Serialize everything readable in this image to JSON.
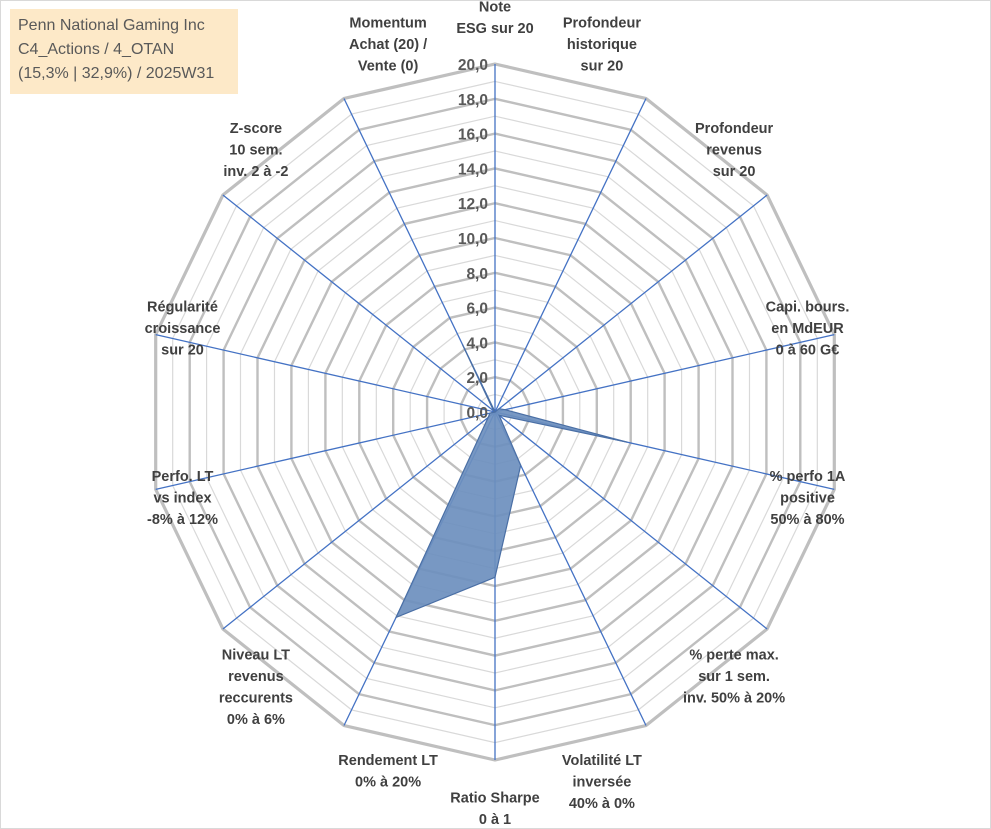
{
  "title_lines": [
    "Penn National Gaming Inc",
    "C4_Actions / 4_OTAN",
    "(15,3% | 32,9%) / 2025W31"
  ],
  "chart_data": {
    "type": "radar",
    "title": "Penn National Gaming Inc C4_Actions / 4_OTAN (15,3% | 32,9%) / 2025W31",
    "rmin": 0,
    "rmax": 20,
    "tick_step": 2,
    "tick_labels": [
      "0,0",
      "2,0",
      "4,0",
      "6,0",
      "8,0",
      "10,0",
      "12,0",
      "14,0",
      "16,0",
      "18,0",
      "20,0"
    ],
    "grid": true,
    "legend": "none",
    "axes": [
      [
        "Note",
        "ESG sur 20"
      ],
      [
        "Profondeur",
        "historique",
        "sur 20"
      ],
      [
        "Profondeur",
        "revenus",
        "sur 20"
      ],
      [
        "Capi. bours.",
        "en MdEUR",
        "0 à 60 G€"
      ],
      [
        "% perfo 1A",
        "positive",
        "50% à 80%"
      ],
      [
        "% perte max.",
        "sur 1 sem.",
        "inv. 50% à 20%"
      ],
      [
        "Volatilité LT",
        "inversée",
        "40% à 0%"
      ],
      [
        "Ratio Sharpe",
        "0 à 1"
      ],
      [
        "Rendement LT",
        "0% à 20%"
      ],
      [
        "Niveau LT",
        "revenus",
        "reccurents",
        "0% à 6%"
      ],
      [
        "Perfo. LT",
        "vs index",
        "-8% à 12%"
      ],
      [
        "Régularité",
        "croissance",
        "sur 20"
      ],
      [
        "Z-score",
        "10 sem.",
        "inv. 2 à -2"
      ],
      [
        "Momentum",
        "Achat (20) /",
        "Vente (0)"
      ]
    ],
    "series": [
      {
        "values": [
          0,
          0,
          0.3,
          0.6,
          7.8,
          0.3,
          3.4,
          9.5,
          13.1,
          0.5,
          0.3,
          0,
          0.1,
          4.3
        ]
      }
    ],
    "colors": {
      "fill": "#6d8fbe",
      "stroke": "#4a6fa5",
      "spoke": "#4472c4",
      "grid_major": "#bfbfbf",
      "grid_minor": "#d9d9d9",
      "title_bg": "#fde9c8"
    }
  }
}
